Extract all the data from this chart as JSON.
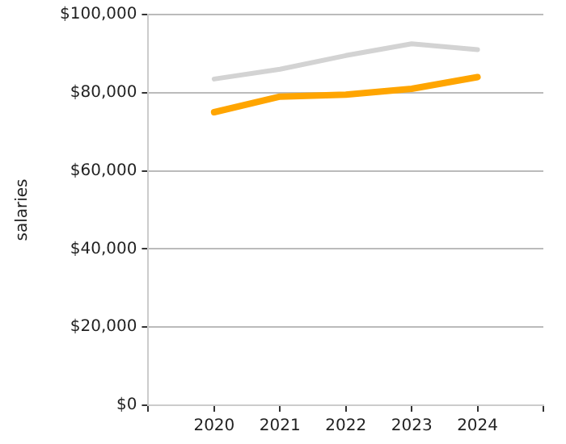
{
  "chart_data": {
    "type": "line",
    "ylabel": "salaries",
    "x": [
      2020,
      2021,
      2022,
      2023,
      2024
    ],
    "series": [
      {
        "color": "#d3d3d3",
        "values": [
          83500,
          86000,
          89500,
          92500,
          91000
        ]
      },
      {
        "color": "#ffa500",
        "values": [
          75000,
          79000,
          79500,
          81000,
          84000
        ]
      }
    ],
    "xlim": [
      2019,
      2025
    ],
    "xticks": [
      {
        "value": 2019,
        "label": null
      },
      2020,
      2021,
      2022,
      2023,
      2024,
      {
        "value": 2025,
        "label": null
      }
    ],
    "ylim": [
      0,
      100000
    ],
    "yticks": [
      {
        "value": 0,
        "label": "$0"
      },
      {
        "value": 20000,
        "label": "$20,000"
      },
      {
        "value": 40000,
        "label": "$40,000"
      },
      {
        "value": 60000,
        "label": "$60,000"
      },
      {
        "value": 80000,
        "label": "$80,000"
      },
      {
        "value": 100000,
        "label": "$100,000"
      }
    ],
    "grid": "y",
    "legend": false,
    "marker": "none",
    "line_style": "solid"
  }
}
